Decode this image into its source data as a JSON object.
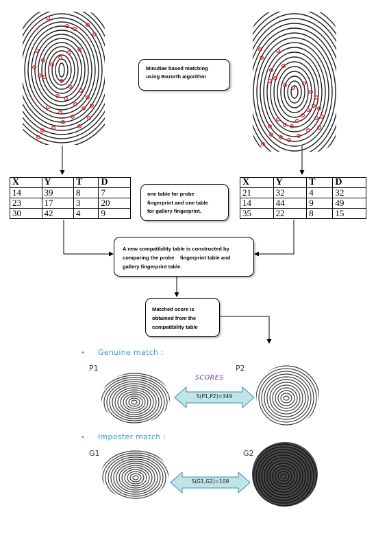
{
  "description_box": {
    "line1": "Minutiae based matching",
    "line2": "using Bozorth algorithm"
  },
  "probe_table": {
    "headers": [
      "X",
      "Y",
      "T",
      "D"
    ],
    "rows": [
      [
        "14",
        "39",
        "8",
        "7"
      ],
      [
        "23",
        "17",
        "3",
        "20"
      ],
      [
        "30",
        "42",
        "4",
        "9"
      ]
    ]
  },
  "gallery_table": {
    "headers": [
      "X",
      "Y",
      "T",
      "D"
    ],
    "rows": [
      [
        "21",
        "32",
        "4",
        "32"
      ],
      [
        "14",
        "44",
        "9",
        "49"
      ],
      [
        "35",
        "22",
        "8",
        "15"
      ]
    ]
  },
  "tables_note": {
    "line1": "one table for probe",
    "line2": "fingerprint and one table",
    "line3": "for gallery fingerprint."
  },
  "compat_box": {
    "line1": "A new compatibility table is constructed by",
    "line2": "comparing the probe    fingerprint table and",
    "line3": "gallery fingerprint table."
  },
  "score_box": {
    "line1": "Matched score is",
    "line2": "obtained from the",
    "line3": "compatibility table"
  },
  "genuine": {
    "bullet": "•",
    "title": "Genuine match :",
    "left_label": "P1",
    "right_label": "P2",
    "scores_label": "SCORES",
    "score_text": "S(P1,P2)=349"
  },
  "imposter": {
    "bullet": "•",
    "title": "Imposter match :",
    "left_label": "G1",
    "right_label": "G2",
    "score_text": "S(G1,G2)=109"
  },
  "colors": {
    "minutiae": "#e0262b",
    "accent": "#3a9bcc",
    "arrow_fill": "#bfe4ea",
    "arrow_stroke": "#3a8fa8",
    "scores": "#6a3d9a"
  },
  "icons": {
    "probe_fingerprint": "fingerprint-with-minutiae",
    "gallery_fingerprint": "fingerprint-with-minutiae",
    "match_fingerprints": "fingerprint",
    "double_arrow": "double-headed-arrow"
  }
}
